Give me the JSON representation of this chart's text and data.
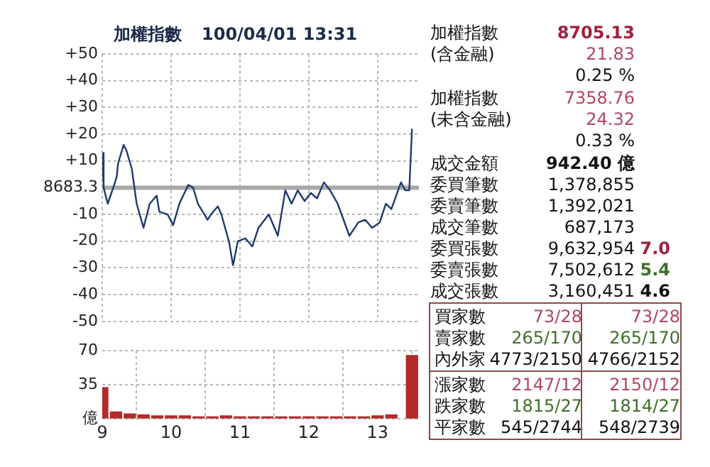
{
  "chart_data": [
    {
      "type": "line",
      "title": "加權指數",
      "subtitle": "100/04/01 13:31",
      "series": [
        {
          "color": "#1f3a6e",
          "x": [
            9.0,
            9.02,
            9.08,
            9.16,
            9.21,
            9.23,
            9.31,
            9.35,
            9.43,
            9.5,
            9.6,
            9.69,
            9.79,
            9.83,
            9.95,
            10.03,
            10.12,
            10.25,
            10.32,
            10.39,
            10.53,
            10.58,
            10.68,
            10.73,
            10.84,
            10.9,
            10.97,
            11.08,
            11.18,
            11.27,
            11.42,
            11.55,
            11.66,
            11.75,
            11.84,
            11.94,
            12.03,
            12.12,
            12.22,
            12.31,
            12.42,
            12.59,
            12.72,
            12.82,
            12.92,
            13.03,
            13.12,
            13.2,
            13.27,
            13.34,
            13.4,
            13.46,
            13.5
          ],
          "values": [
            13,
            0,
            -6,
            0,
            4,
            9,
            16,
            14,
            7,
            -6,
            -15,
            -6,
            -3,
            -9,
            -10,
            -14,
            -6,
            1,
            0,
            -6,
            -12,
            -10,
            -7,
            -10,
            -20,
            -29,
            -20,
            -19,
            -22,
            -15,
            -10,
            -18,
            -1,
            -6,
            -1,
            -5,
            -2,
            -4,
            2,
            -1,
            -6,
            -18,
            -13,
            -12,
            -15,
            -13,
            -6,
            -8,
            -3,
            2,
            -1,
            -1,
            22
          ]
        }
      ],
      "xlim": [
        9,
        13.6
      ],
      "xticks": [
        9,
        10,
        11,
        12,
        13
      ],
      "ylim": [
        -50,
        50
      ],
      "yticks": [
        "+50",
        "+40",
        "+30",
        "+20",
        "+10",
        {
          "value": 0,
          "label": null
        },
        -10,
        -20,
        -30,
        -40,
        -50
      ],
      "ref_lines": [
        {
          "axis": "y",
          "value": 0,
          "color": "#a8a8a8"
        }
      ],
      "annotations": [
        "8683.3"
      ],
      "grid": true,
      "line_style": "solid",
      "marker": "none",
      "tick_labels": "y",
      "legend": false
    },
    {
      "type": "bar",
      "x": [
        9.0,
        9.2,
        9.4,
        9.6,
        9.8,
        10.0,
        10.2,
        10.4,
        10.6,
        10.8,
        11.0,
        11.2,
        11.4,
        11.6,
        11.8,
        12.0,
        12.2,
        12.4,
        12.6,
        12.8,
        13.0,
        13.2,
        13.5
      ],
      "values": [
        32,
        7,
        5,
        4,
        3,
        3,
        3,
        2,
        2,
        3,
        2,
        2,
        2,
        2,
        2,
        2,
        2,
        2,
        2,
        2,
        3,
        4,
        65
      ],
      "color": "#b22a2a",
      "xlim": [
        9,
        13.6
      ],
      "xticks": [
        9,
        10,
        11,
        12,
        13
      ],
      "ylim": [
        0,
        70
      ],
      "yticks": [
        {
          "value": 0,
          "label": "億"
        },
        35,
        70
      ],
      "grid": true,
      "legend": false
    },
    {
      "type": "other",
      "annotations": [
        "加權指數",
        "8705.13",
        "(含金融)",
        "21.83",
        "0.25 %",
        "加權指數",
        "7358.76",
        "(未含金融)",
        "24.32",
        "0.33 %",
        "成交金額",
        "942.40 億",
        "委買筆數",
        "1,378,855",
        "委賣筆數",
        "1,392,021",
        "成交筆數",
        "687,173",
        "委買張數",
        "9,632,954",
        "7.0",
        "委賣張數",
        "7,502,612",
        "5.4",
        "成交張數",
        "3,160,451",
        "4.6",
        "買家數",
        "73/28",
        "73/28",
        "賣家數",
        "265/170",
        "265/170",
        "內外家",
        "4773/2150",
        "4766/2152",
        "漲家數",
        "2147/12",
        "2150/12",
        "跌家數",
        "1815/27",
        "1814/27",
        "平家數",
        "545/2744",
        "548/2739"
      ]
    }
  ]
}
